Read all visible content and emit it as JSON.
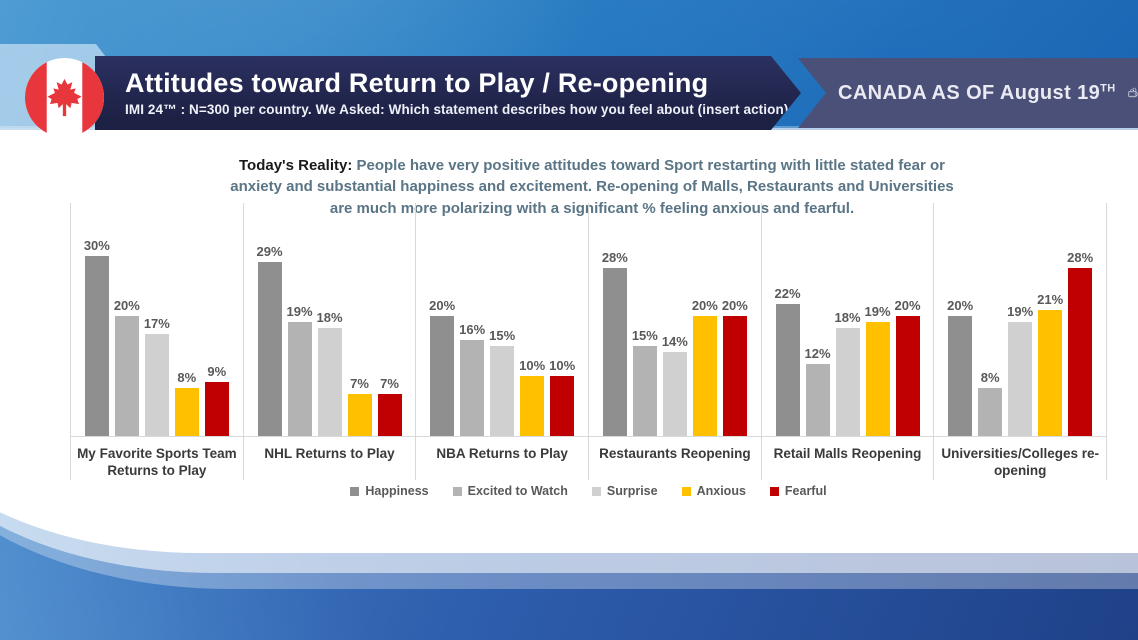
{
  "header": {
    "title": "Attitudes toward Return to Play / Re-opening",
    "subtitle": "IMI 24™ : N=300 per country. We Asked: Which statement describes how you feel about (insert action)",
    "badge_prefix": "CANADA AS OF August 19",
    "badge_sup": "TH",
    "banner_color": "#1d2144",
    "badge_banner_color": "#4a5078",
    "flag_red": "#e8363d"
  },
  "summary": {
    "lead": "Today's Reality:",
    "text": "People have very positive attitudes toward Sport restarting with little stated fear or anxiety and substantial happiness and excitement.  Re-opening of Malls, Restaurants and Universities are much more polarizing with a significant % feeling anxious and fearful.",
    "lead_color": "#1a1a1a",
    "text_color": "#5a7585"
  },
  "chart_data": {
    "type": "bar",
    "title": "",
    "xlabel": "",
    "ylabel": "",
    "ylim": [
      0,
      35
    ],
    "grid": false,
    "legend_position": "bottom",
    "value_suffix": "%",
    "categories": [
      "My Favorite Sports Team Returns to Play",
      "NHL Returns to Play",
      "NBA Returns to Play",
      "Restaurants Reopening",
      "Retail Malls Reopening",
      "Universities/Colleges re-opening"
    ],
    "series": [
      {
        "name": "Happiness",
        "color": "#8f8f8f",
        "values": [
          30,
          29,
          20,
          28,
          22,
          20
        ]
      },
      {
        "name": "Excited to Watch",
        "color": "#b3b3b3",
        "values": [
          20,
          19,
          16,
          15,
          12,
          8
        ]
      },
      {
        "name": "Surprise",
        "color": "#d0d0d0",
        "values": [
          17,
          18,
          15,
          14,
          18,
          19
        ]
      },
      {
        "name": "Anxious",
        "color": "#ffc000",
        "values": [
          8,
          7,
          10,
          20,
          19,
          21
        ]
      },
      {
        "name": "Fearful",
        "color": "#c00000",
        "values": [
          9,
          7,
          10,
          20,
          20,
          28
        ]
      }
    ],
    "value_label_color": "#595959",
    "axis_line_color": "#d9d9d9"
  }
}
